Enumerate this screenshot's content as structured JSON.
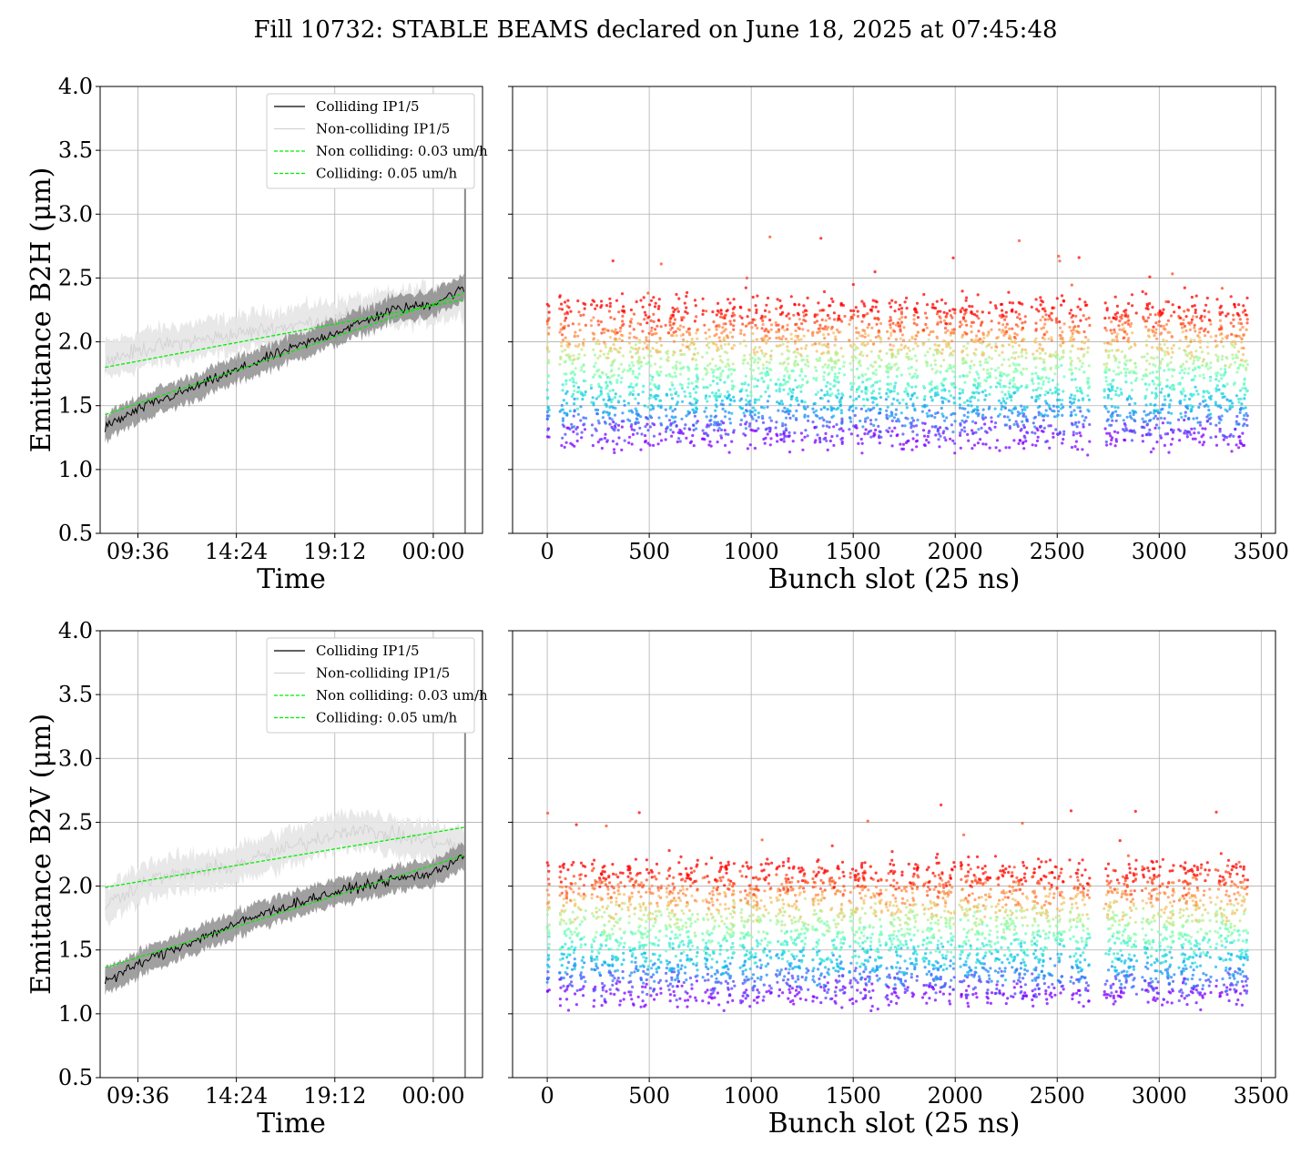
{
  "title": "Fill 10732: STABLE BEAMS declared on June 18, 2025 at 07:45:48",
  "colors": {
    "colliding": "#000000",
    "non_colliding": "#d3d3d3",
    "fit": "#00ee00",
    "band_colliding": "#808080",
    "band_non_colliding": "#e6e6e6",
    "grid": "#b0b0b0"
  },
  "chart_data": [
    {
      "type": "line",
      "xlabel": "Time",
      "ylabel": "Emittance B2H (μm)",
      "ylim": [
        0.5,
        4.0
      ],
      "yticks": [
        "0.5",
        "1.0",
        "1.5",
        "2.0",
        "2.5",
        "3.0",
        "3.5",
        "4.0"
      ],
      "xtick_labels": [
        "09:36",
        "14:24",
        "19:12",
        "00:00"
      ],
      "xtick_hours": [
        9.6,
        14.4,
        19.2,
        24.0
      ],
      "x_range_hours": [
        7.76,
        26.4
      ],
      "grid": true,
      "legend_position": "top-right",
      "legend": [
        "Colliding IP1/5",
        "Non-colliding IP1/5",
        "Non colliding: 0.03 um/h",
        "Colliding: 0.05 um/h"
      ],
      "series": [
        {
          "name": "Colliding IP1/5",
          "x_hours": [
            8.0,
            10.0,
            12.0,
            14.0,
            16.0,
            18.0,
            20.0,
            22.0,
            24.0,
            25.5
          ],
          "values": [
            1.33,
            1.5,
            1.62,
            1.75,
            1.88,
            2.0,
            2.12,
            2.25,
            2.3,
            2.42
          ]
        },
        {
          "name": "Non-colliding IP1/5",
          "x_hours": [
            8.0,
            10.0,
            12.0,
            14.0,
            16.0,
            18.0,
            20.0,
            22.0,
            24.0,
            25.5
          ],
          "values": [
            1.85,
            1.95,
            2.0,
            2.05,
            2.1,
            2.15,
            2.2,
            2.25,
            2.3,
            2.35
          ]
        },
        {
          "name": "Non colliding: 0.03 um/h",
          "x_hours": [
            8.0,
            25.5
          ],
          "values": [
            1.8,
            2.33
          ]
        },
        {
          "name": "Colliding: 0.05 um/h",
          "x_hours": [
            8.0,
            25.5
          ],
          "values": [
            1.43,
            2.38
          ]
        }
      ]
    },
    {
      "type": "scatter",
      "xlabel": "Bunch slot (25 ns)",
      "ylim": [
        0.5,
        4.0
      ],
      "xlim": [
        -170,
        3570
      ],
      "xticks": [
        0,
        500,
        1000,
        1500,
        2000,
        2500,
        3000,
        3500
      ],
      "grid": true,
      "trains": [
        [
          0,
          10
        ],
        [
          60,
          190
        ],
        [
          215,
          380
        ],
        [
          395,
          560
        ],
        [
          580,
          740
        ],
        [
          760,
          920
        ],
        [
          945,
          1100
        ],
        [
          1120,
          1280
        ],
        [
          1300,
          1460
        ],
        [
          1480,
          1640
        ],
        [
          1660,
          1820
        ],
        [
          1840,
          2000
        ],
        [
          2020,
          2180
        ],
        [
          2195,
          2355
        ],
        [
          2375,
          2535
        ],
        [
          2560,
          2660
        ],
        [
          2730,
          2890
        ],
        [
          2915,
          3075
        ],
        [
          3095,
          3255
        ],
        [
          3275,
          3435
        ]
      ],
      "spread": {
        "low": 1.2,
        "high": 2.5
      }
    },
    {
      "type": "line",
      "xlabel": "Time",
      "ylabel": "Emittance B2V (μm)",
      "ylim": [
        0.5,
        4.0
      ],
      "yticks": [
        "0.5",
        "1.0",
        "1.5",
        "2.0",
        "2.5",
        "3.0",
        "3.5",
        "4.0"
      ],
      "xtick_labels": [
        "09:36",
        "14:24",
        "19:12",
        "00:00"
      ],
      "xtick_hours": [
        9.6,
        14.4,
        19.2,
        24.0
      ],
      "x_range_hours": [
        7.76,
        26.4
      ],
      "grid": true,
      "legend_position": "top-right",
      "legend": [
        "Colliding IP1/5",
        "Non-colliding IP1/5",
        "Non colliding: 0.03 um/h",
        "Colliding: 0.05 um/h"
      ],
      "series": [
        {
          "name": "Colliding IP1/5",
          "x_hours": [
            8.0,
            10.0,
            12.0,
            14.0,
            16.0,
            18.0,
            20.0,
            22.0,
            24.0,
            25.5
          ],
          "values": [
            1.25,
            1.42,
            1.55,
            1.68,
            1.8,
            1.9,
            1.98,
            2.05,
            2.1,
            2.25
          ]
        },
        {
          "name": "Non-colliding IP1/5",
          "x_hours": [
            8.0,
            10.0,
            12.0,
            14.0,
            16.0,
            18.0,
            20.0,
            22.0,
            24.0,
            25.5
          ],
          "values": [
            1.85,
            2.05,
            2.1,
            2.15,
            2.25,
            2.35,
            2.45,
            2.4,
            2.35,
            2.3
          ]
        },
        {
          "name": "Non colliding: 0.03 um/h",
          "x_hours": [
            8.0,
            25.5
          ],
          "values": [
            1.99,
            2.46
          ]
        },
        {
          "name": "Colliding: 0.05 um/h",
          "x_hours": [
            8.0,
            25.5
          ],
          "values": [
            1.36,
            2.24
          ]
        }
      ]
    },
    {
      "type": "scatter",
      "xlabel": "Bunch slot (25 ns)",
      "ylim": [
        0.5,
        4.0
      ],
      "xlim": [
        -170,
        3570
      ],
      "xticks": [
        0,
        500,
        1000,
        1500,
        2000,
        2500,
        3000,
        3500
      ],
      "grid": true,
      "trains": [
        [
          0,
          10
        ],
        [
          60,
          190
        ],
        [
          215,
          380
        ],
        [
          395,
          560
        ],
        [
          580,
          740
        ],
        [
          760,
          920
        ],
        [
          945,
          1100
        ],
        [
          1120,
          1280
        ],
        [
          1300,
          1460
        ],
        [
          1480,
          1640
        ],
        [
          1660,
          1820
        ],
        [
          1840,
          2000
        ],
        [
          2020,
          2180
        ],
        [
          2195,
          2355
        ],
        [
          2375,
          2535
        ],
        [
          2560,
          2660
        ],
        [
          2730,
          2890
        ],
        [
          2915,
          3075
        ],
        [
          3095,
          3255
        ],
        [
          3275,
          3435
        ]
      ],
      "spread": {
        "low": 1.1,
        "high": 2.35
      }
    }
  ]
}
